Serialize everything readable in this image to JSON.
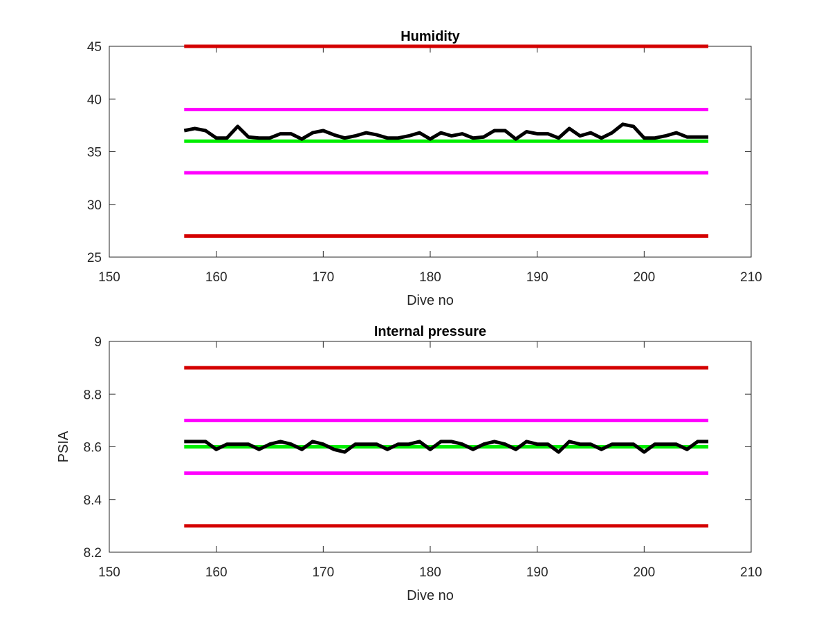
{
  "chart_data": [
    {
      "type": "line",
      "title": "Humidity",
      "xlabel": "Dive no",
      "ylabel": "",
      "xlim": [
        150,
        210
      ],
      "ylim": [
        25,
        45
      ],
      "xticks": [
        150,
        160,
        170,
        180,
        190,
        200,
        210
      ],
      "yticks": [
        25,
        30,
        35,
        40,
        45
      ],
      "grid": false,
      "series": [
        {
          "color": "#d40000",
          "x": [
            157,
            206
          ],
          "y": [
            45,
            45
          ]
        },
        {
          "color": "#ff00ff",
          "x": [
            157,
            206
          ],
          "y": [
            39,
            39
          ]
        },
        {
          "color": "#00ee00",
          "x": [
            157,
            206
          ],
          "y": [
            36,
            36
          ]
        },
        {
          "color": "#ff00ff",
          "x": [
            157,
            206
          ],
          "y": [
            33,
            33
          ]
        },
        {
          "color": "#d40000",
          "x": [
            157,
            206
          ],
          "y": [
            27,
            27
          ]
        },
        {
          "color": "#000000",
          "x": [
            157,
            158,
            159,
            160,
            161,
            162,
            163,
            164,
            165,
            166,
            167,
            168,
            169,
            170,
            171,
            172,
            173,
            174,
            175,
            176,
            177,
            178,
            179,
            180,
            181,
            182,
            183,
            184,
            185,
            186,
            187,
            188,
            189,
            190,
            191,
            192,
            193,
            194,
            195,
            196,
            197,
            198,
            199,
            200,
            201,
            202,
            203,
            204,
            205,
            206
          ],
          "y": [
            37,
            37.2,
            37,
            36.3,
            36.3,
            37.4,
            36.4,
            36.3,
            36.3,
            36.7,
            36.7,
            36.2,
            36.8,
            37,
            36.6,
            36.3,
            36.5,
            36.8,
            36.6,
            36.3,
            36.3,
            36.5,
            36.8,
            36.2,
            36.8,
            36.5,
            36.7,
            36.3,
            36.4,
            37,
            37,
            36.2,
            36.9,
            36.7,
            36.7,
            36.3,
            37.2,
            36.5,
            36.8,
            36.3,
            36.8,
            37.6,
            37.4,
            36.3,
            36.3,
            36.5,
            36.8,
            36.4,
            36.4,
            36.4
          ]
        }
      ]
    },
    {
      "type": "line",
      "title": "Internal pressure",
      "xlabel": "Dive no",
      "ylabel": "PSIA",
      "xlim": [
        150,
        210
      ],
      "ylim": [
        8.2,
        9
      ],
      "xticks": [
        150,
        160,
        170,
        180,
        190,
        200,
        210
      ],
      "yticks": [
        8.2,
        8.4,
        8.6,
        8.8,
        9
      ],
      "ytick_labels": [
        "8.2",
        "8.4",
        "8.6",
        "8.8",
        "9"
      ],
      "grid": false,
      "series": [
        {
          "color": "#d40000",
          "x": [
            157,
            206
          ],
          "y": [
            8.9,
            8.9
          ]
        },
        {
          "color": "#ff00ff",
          "x": [
            157,
            206
          ],
          "y": [
            8.7,
            8.7
          ]
        },
        {
          "color": "#00ee00",
          "x": [
            157,
            206
          ],
          "y": [
            8.6,
            8.6
          ]
        },
        {
          "color": "#ff00ff",
          "x": [
            157,
            206
          ],
          "y": [
            8.5,
            8.5
          ]
        },
        {
          "color": "#d40000",
          "x": [
            157,
            206
          ],
          "y": [
            8.3,
            8.3
          ]
        },
        {
          "color": "#000000",
          "x": [
            157,
            158,
            159,
            160,
            161,
            162,
            163,
            164,
            165,
            166,
            167,
            168,
            169,
            170,
            171,
            172,
            173,
            174,
            175,
            176,
            177,
            178,
            179,
            180,
            181,
            182,
            183,
            184,
            185,
            186,
            187,
            188,
            189,
            190,
            191,
            192,
            193,
            194,
            195,
            196,
            197,
            198,
            199,
            200,
            201,
            202,
            203,
            204,
            205,
            206
          ],
          "y": [
            8.62,
            8.62,
            8.62,
            8.59,
            8.61,
            8.61,
            8.61,
            8.59,
            8.61,
            8.62,
            8.61,
            8.59,
            8.62,
            8.61,
            8.59,
            8.58,
            8.61,
            8.61,
            8.61,
            8.59,
            8.61,
            8.61,
            8.62,
            8.59,
            8.62,
            8.62,
            8.61,
            8.59,
            8.61,
            8.62,
            8.61,
            8.59,
            8.62,
            8.61,
            8.61,
            8.58,
            8.62,
            8.61,
            8.61,
            8.59,
            8.61,
            8.61,
            8.61,
            8.58,
            8.61,
            8.61,
            8.61,
            8.59,
            8.62,
            8.62
          ]
        }
      ]
    }
  ]
}
